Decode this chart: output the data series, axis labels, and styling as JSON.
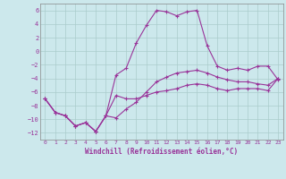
{
  "xlabel": "Windchill (Refroidissement éolien,°C)",
  "bg_color": "#cce8ec",
  "line_color": "#993399",
  "grid_color": "#aacccc",
  "xlim": [
    -0.5,
    23.5
  ],
  "ylim": [
    -13,
    7
  ],
  "yticks": [
    -12,
    -10,
    -8,
    -6,
    -4,
    -2,
    0,
    2,
    4,
    6
  ],
  "xticks": [
    0,
    1,
    2,
    3,
    4,
    5,
    6,
    7,
    8,
    9,
    10,
    11,
    12,
    13,
    14,
    15,
    16,
    17,
    18,
    19,
    20,
    21,
    22,
    23
  ],
  "line1_x": [
    0,
    1,
    2,
    3,
    4,
    5,
    6,
    7,
    8,
    9,
    10,
    11,
    12,
    13,
    14,
    15,
    16,
    17,
    18,
    19,
    20,
    21,
    22,
    23
  ],
  "line1_y": [
    -7.0,
    -9.0,
    -9.5,
    -11.0,
    -10.5,
    -11.8,
    -9.5,
    -6.5,
    -7.0,
    -7.0,
    -6.5,
    -6.0,
    -5.8,
    -5.5,
    -5.0,
    -4.8,
    -5.0,
    -5.5,
    -5.8,
    -5.5,
    -5.5,
    -5.5,
    -5.8,
    -4.0
  ],
  "line2_x": [
    0,
    1,
    2,
    3,
    4,
    5,
    6,
    7,
    8,
    9,
    10,
    11,
    12,
    13,
    14,
    15,
    16,
    17,
    18,
    19,
    20,
    21,
    22,
    23
  ],
  "line2_y": [
    -7.0,
    -9.0,
    -9.5,
    -11.0,
    -10.5,
    -11.8,
    -9.5,
    -9.8,
    -8.5,
    -7.5,
    -6.0,
    -4.5,
    -3.8,
    -3.2,
    -3.0,
    -2.8,
    -3.2,
    -3.8,
    -4.2,
    -4.5,
    -4.5,
    -4.8,
    -5.0,
    -4.0
  ],
  "line3_x": [
    0,
    1,
    2,
    3,
    4,
    5,
    6,
    7,
    8,
    9,
    10,
    11,
    12,
    13,
    14,
    15,
    16,
    17,
    18,
    19,
    20,
    21,
    22,
    23
  ],
  "line3_y": [
    -7.0,
    -9.0,
    -9.5,
    -11.0,
    -10.5,
    -11.8,
    -9.5,
    -3.5,
    -2.5,
    1.2,
    3.8,
    6.0,
    5.8,
    5.2,
    5.8,
    6.0,
    0.8,
    -2.2,
    -2.8,
    -2.5,
    -2.8,
    -2.2,
    -2.2,
    -4.2
  ]
}
